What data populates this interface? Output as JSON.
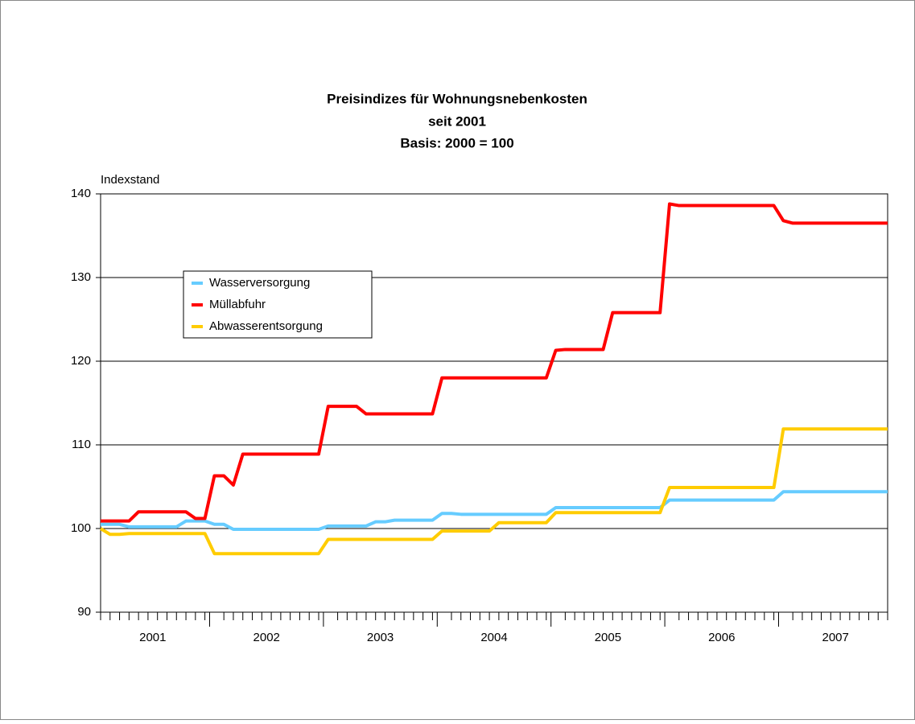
{
  "chart_data": {
    "type": "line",
    "title": [
      "Preisindizes für Wohnungsnebenkosten",
      "seit 2001",
      "Basis: 2000 = 100"
    ],
    "y_label": "Indexstand",
    "group_labels": [
      "2001",
      "2002",
      "2003",
      "2004",
      "2005",
      "2006",
      "2007"
    ],
    "categories": [
      null,
      null,
      null,
      null,
      null,
      null,
      null,
      null,
      null,
      null,
      null,
      null,
      null,
      null,
      null,
      null,
      null,
      null,
      null,
      null,
      null,
      null,
      null,
      null,
      null,
      null,
      null,
      null,
      null,
      null,
      null,
      null,
      null,
      null,
      null,
      null,
      null,
      null,
      null,
      null,
      null,
      null,
      null,
      null,
      null,
      null,
      null,
      null,
      null,
      null,
      null,
      null,
      null,
      null,
      null,
      null,
      null,
      null,
      null,
      null,
      null,
      null,
      null,
      null,
      null,
      null,
      null,
      null,
      null,
      null,
      null,
      null,
      null,
      null,
      null,
      null,
      null,
      null,
      null,
      null,
      null,
      null,
      null,
      null
    ],
    "ylim": [
      90,
      140
    ],
    "yticks": [
      90,
      100,
      110,
      120,
      130,
      140
    ],
    "grid": true,
    "series": [
      {
        "name": "Wasserversorgung",
        "color": "#66ccff",
        "values": [
          100.5,
          100.5,
          100.5,
          100.2,
          100.2,
          100.2,
          100.2,
          100.2,
          100.2,
          100.9,
          100.9,
          100.9,
          100.5,
          100.5,
          99.9,
          99.9,
          99.9,
          99.9,
          99.9,
          99.9,
          99.9,
          99.9,
          99.9,
          99.9,
          100.3,
          100.3,
          100.3,
          100.3,
          100.3,
          100.8,
          100.8,
          101.0,
          101.0,
          101.0,
          101.0,
          101.0,
          101.8,
          101.8,
          101.7,
          101.7,
          101.7,
          101.7,
          101.7,
          101.7,
          101.7,
          101.7,
          101.7,
          101.7,
          102.5,
          102.5,
          102.5,
          102.5,
          102.5,
          102.5,
          102.5,
          102.5,
          102.5,
          102.5,
          102.5,
          102.5,
          103.4,
          103.4,
          103.4,
          103.4,
          103.4,
          103.4,
          103.4,
          103.4,
          103.4,
          103.4,
          103.4,
          103.4,
          104.4,
          104.4,
          104.4,
          104.4,
          104.4,
          104.4,
          104.4,
          104.4,
          104.4,
          104.4,
          104.4,
          104.4
        ]
      },
      {
        "name": "Müllabfuhr",
        "color": "#ff0000",
        "values": [
          100.9,
          100.9,
          100.9,
          100.9,
          102.0,
          102.0,
          102.0,
          102.0,
          102.0,
          102.0,
          101.2,
          101.2,
          106.3,
          106.3,
          105.2,
          108.9,
          108.9,
          108.9,
          108.9,
          108.9,
          108.9,
          108.9,
          108.9,
          108.9,
          114.6,
          114.6,
          114.6,
          114.6,
          113.7,
          113.7,
          113.7,
          113.7,
          113.7,
          113.7,
          113.7,
          113.7,
          118.0,
          118.0,
          118.0,
          118.0,
          118.0,
          118.0,
          118.0,
          118.0,
          118.0,
          118.0,
          118.0,
          118.0,
          121.3,
          121.4,
          121.4,
          121.4,
          121.4,
          121.4,
          125.8,
          125.8,
          125.8,
          125.8,
          125.8,
          125.8,
          138.8,
          138.6,
          138.6,
          138.6,
          138.6,
          138.6,
          138.6,
          138.6,
          138.6,
          138.6,
          138.6,
          138.6,
          136.8,
          136.5,
          136.5,
          136.5,
          136.5,
          136.5,
          136.5,
          136.5,
          136.5,
          136.5,
          136.5,
          136.5
        ]
      },
      {
        "name": "Abwasserentsorgung",
        "color": "#ffcc00",
        "values": [
          100.0,
          99.3,
          99.3,
          99.4,
          99.4,
          99.4,
          99.4,
          99.4,
          99.4,
          99.4,
          99.4,
          99.4,
          97.0,
          97.0,
          97.0,
          97.0,
          97.0,
          97.0,
          97.0,
          97.0,
          97.0,
          97.0,
          97.0,
          97.0,
          98.7,
          98.7,
          98.7,
          98.7,
          98.7,
          98.7,
          98.7,
          98.7,
          98.7,
          98.7,
          98.7,
          98.7,
          99.7,
          99.7,
          99.7,
          99.7,
          99.7,
          99.7,
          100.7,
          100.7,
          100.7,
          100.7,
          100.7,
          100.7,
          101.9,
          101.9,
          101.9,
          101.9,
          101.9,
          101.9,
          101.9,
          101.9,
          101.9,
          101.9,
          101.9,
          101.9,
          104.9,
          104.9,
          104.9,
          104.9,
          104.9,
          104.9,
          104.9,
          104.9,
          104.9,
          104.9,
          104.9,
          104.9,
          111.9,
          111.9,
          111.9,
          111.9,
          111.9,
          111.9,
          111.9,
          111.9,
          111.9,
          111.9,
          111.9,
          111.9
        ]
      }
    ]
  }
}
